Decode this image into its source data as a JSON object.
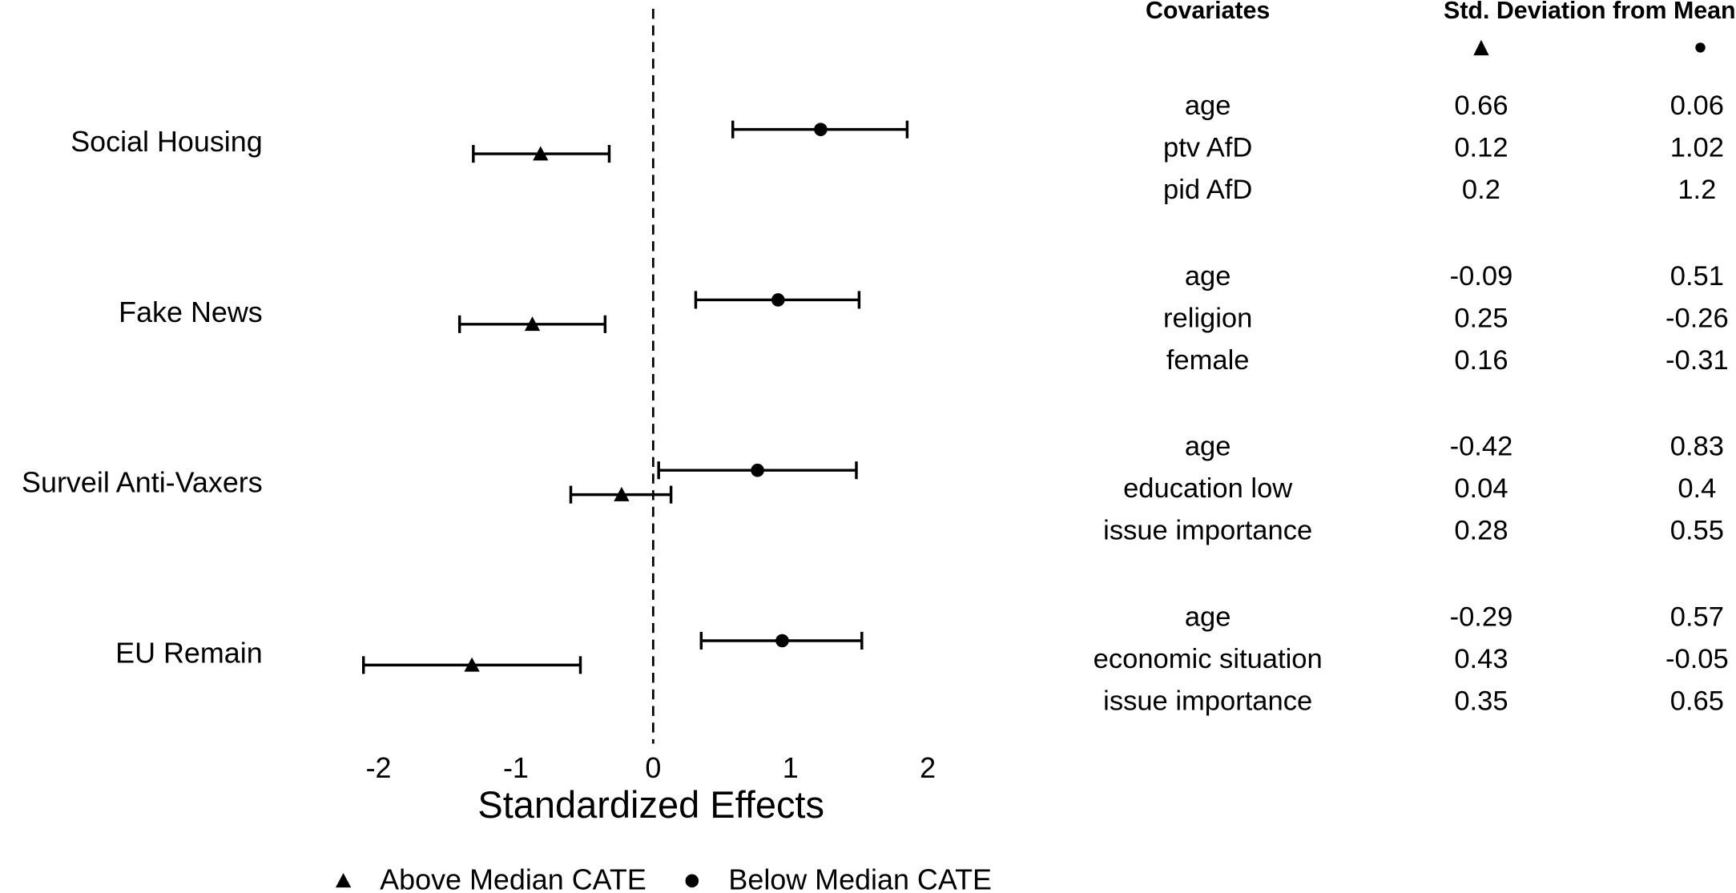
{
  "chart_data": {
    "type": "dotplot",
    "x_label": "Standardized Effects",
    "categories": [
      "Social Housing",
      "Fake News",
      "Surveil Anti-Vaxers",
      "EU Remain"
    ],
    "series": [
      {
        "name": "Above Median CATE",
        "marker": "triangle",
        "color": "#000000",
        "values": [
          -0.82,
          -0.88,
          -0.23,
          -1.32
        ],
        "ci_low": [
          -1.31,
          -1.41,
          -0.6,
          -2.11
        ],
        "ci_high": [
          -0.32,
          -0.35,
          0.13,
          -0.53
        ]
      },
      {
        "name": "Below Median CATE",
        "marker": "circle",
        "color": "#000000",
        "values": [
          1.22,
          0.91,
          0.76,
          0.94
        ],
        "ci_low": [
          0.58,
          0.31,
          0.04,
          0.35
        ],
        "ci_high": [
          1.85,
          1.5,
          1.48,
          1.52
        ]
      }
    ],
    "xlim": [
      -2.7,
      2.5
    ],
    "xticks": [
      -2,
      -1,
      0,
      1,
      2
    ],
    "reference_line": 0,
    "legend_position": "bottom"
  },
  "table": {
    "headers": [
      "Covariates",
      "Std. Deviation from Mean"
    ],
    "groups": [
      [
        [
          "age",
          "0.66",
          "0.06"
        ],
        [
          "ptv AfD",
          "0.12",
          "1.02"
        ],
        [
          "pid AfD",
          "0.2",
          "1.2"
        ]
      ],
      [
        [
          "age",
          "-0.09",
          "0.51"
        ],
        [
          "religion",
          "0.25",
          "-0.26"
        ],
        [
          "female",
          "0.16",
          "-0.31"
        ]
      ],
      [
        [
          "age",
          "-0.42",
          "0.83"
        ],
        [
          "education low",
          "0.04",
          "0.4"
        ],
        [
          "issue importance",
          "0.28",
          "0.55"
        ]
      ],
      [
        [
          "age",
          "-0.29",
          "0.57"
        ],
        [
          "economic situation",
          "0.43",
          "-0.05"
        ],
        [
          "issue importance",
          "0.35",
          "0.65"
        ]
      ]
    ]
  }
}
